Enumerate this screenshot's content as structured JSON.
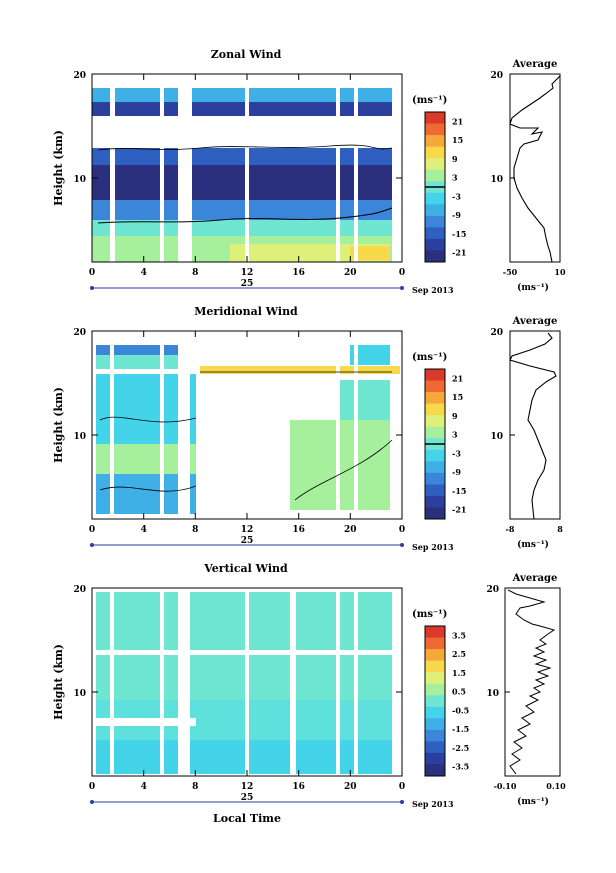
{
  "chart_data": [
    {
      "type": "heatmap",
      "title": "Zonal Wind",
      "ylabel": "Height (km)",
      "ylim": [
        2,
        20
      ],
      "xlim": [
        0,
        24
      ],
      "x_ticks": [
        "0",
        "4",
        "8",
        "12",
        "16",
        "20",
        "0"
      ],
      "y_ticks": [
        "20",
        "10"
      ],
      "date_label": "25",
      "date_suffix": "Sep 2013",
      "colorbar": {
        "unit_label": "(ms⁻¹)",
        "ticks": [
          "21",
          "15",
          "9",
          "3",
          "-3",
          "-9",
          "-15",
          "-21"
        ],
        "range": [
          -24,
          24
        ],
        "contour_tick": 0
      },
      "profile": {
        "title": "Average",
        "xlabel": "(ms⁻¹)",
        "x_ticks": [
          "-50",
          "10"
        ],
        "xlim": [
          -50,
          10
        ],
        "y_ticks": [
          "20",
          "10"
        ]
      }
    },
    {
      "type": "heatmap",
      "title": "Meridional Wind",
      "ylabel": "Height (km)",
      "ylim": [
        2,
        20
      ],
      "xlim": [
        0,
        24
      ],
      "x_ticks": [
        "0",
        "4",
        "8",
        "12",
        "16",
        "20",
        "0"
      ],
      "y_ticks": [
        "20",
        "10"
      ],
      "date_label": "25",
      "date_suffix": "Sep 2013",
      "colorbar": {
        "unit_label": "(ms⁻¹)",
        "ticks": [
          "21",
          "15",
          "9",
          "3",
          "-3",
          "-9",
          "-15",
          "-21"
        ],
        "range": [
          -24,
          24
        ],
        "contour_tick": 0
      },
      "profile": {
        "title": "Average",
        "xlabel": "(ms⁻¹)",
        "x_ticks": [
          "-8",
          "8"
        ],
        "xlim": [
          -8,
          8
        ],
        "y_ticks": [
          "20",
          "10"
        ]
      }
    },
    {
      "type": "heatmap",
      "title": "Vertical Wind",
      "ylabel": "Height (km)",
      "xlabel": "Local Time",
      "ylim": [
        2,
        20
      ],
      "xlim": [
        0,
        24
      ],
      "x_ticks": [
        "0",
        "4",
        "8",
        "12",
        "16",
        "20",
        "0"
      ],
      "y_ticks": [
        "20",
        "10"
      ],
      "date_label": "25",
      "date_suffix": "Sep 2013",
      "colorbar": {
        "unit_label": "(ms⁻¹)",
        "ticks": [
          "3.5",
          "2.5",
          "1.5",
          "0.5",
          "-0.5",
          "-1.5",
          "-2.5",
          "-3.5"
        ],
        "range": [
          -4,
          4
        ],
        "contour_tick": null
      },
      "profile": {
        "title": "Average",
        "xlabel": "(ms⁻¹)",
        "x_ticks": [
          "-0.10",
          "0.10"
        ],
        "xlim": [
          -0.1,
          0.1
        ],
        "y_ticks": [
          "20",
          "10"
        ]
      }
    }
  ],
  "colormap": [
    "#2a2f7e",
    "#2b3f9e",
    "#2f5fc0",
    "#3b86d8",
    "#3fb0e6",
    "#44d4ea",
    "#6fe6d2",
    "#a6ef9c",
    "#dff07a",
    "#f7d94a",
    "#f7a83a",
    "#ee6a32",
    "#d93a2b"
  ]
}
